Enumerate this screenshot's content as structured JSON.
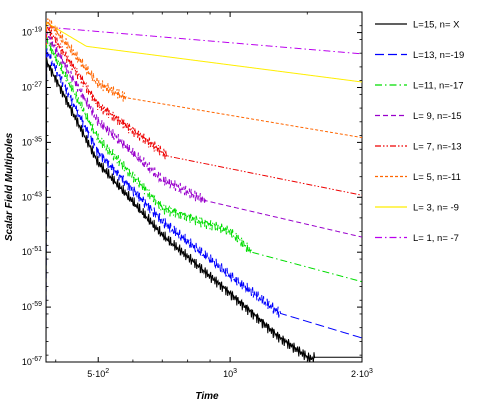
{
  "chart_data": {
    "type": "line",
    "title": "",
    "xlabel": "Time",
    "ylabel": "Scalar Field Multipoles",
    "x_scale": "log",
    "y_scale": "log",
    "xlim": [
      380,
      2000
    ],
    "ylim": [
      1e-67,
      1e-16
    ],
    "x_ticks": [
      {
        "value": 500,
        "base": "5·10",
        "exp": "2"
      },
      {
        "value": 1000,
        "base": "10",
        "exp": "3"
      },
      {
        "value": 2000,
        "base": "2·10",
        "exp": "3"
      }
    ],
    "y_ticks": [
      {
        "value_exp": -19,
        "base": "10",
        "exp": "-19"
      },
      {
        "value_exp": -27,
        "base": "10",
        "exp": "-27"
      },
      {
        "value_exp": -35,
        "base": "10",
        "exp": "-35"
      },
      {
        "value_exp": -43,
        "base": "10",
        "exp": "-43"
      },
      {
        "value_exp": -51,
        "base": "10",
        "exp": "-51"
      },
      {
        "value_exp": -59,
        "base": "10",
        "exp": "-59"
      },
      {
        "value_exp": -67,
        "base": "10",
        "exp": "-67"
      }
    ],
    "grid": false,
    "legend_position": "right",
    "series": [
      {
        "name": "L=15, n= X",
        "color": "#000000",
        "dash": "solid",
        "tail_slope": 0,
        "points": [
          [
            380,
            -23.0
          ],
          [
            500,
            -38.0
          ],
          [
            700,
            -48.5
          ],
          [
            1000,
            -57.0
          ],
          [
            1300,
            -63.5
          ],
          [
            1530,
            -66.6
          ],
          [
            1560,
            -66.3
          ],
          [
            2000,
            -66.3
          ]
        ]
      },
      {
        "name": "L=13, n=-19",
        "color": "#0000ff",
        "dash": "long-dash",
        "tail_slope": -19,
        "points": [
          [
            380,
            -21.5
          ],
          [
            500,
            -36.5
          ],
          [
            700,
            -46.5
          ],
          [
            1000,
            -54.5
          ],
          [
            1300,
            -59.9
          ],
          [
            2000,
            -63.5
          ]
        ]
      },
      {
        "name": "L=11, n=-17",
        "color": "#00dd00",
        "dash": "dash-dot",
        "tail_slope": -17,
        "points": [
          [
            380,
            -20.0
          ],
          [
            500,
            -34.5
          ],
          [
            700,
            -44.5
          ],
          [
            1000,
            -48.0
          ],
          [
            1120,
            -51.0
          ],
          [
            2000,
            -55.3
          ]
        ]
      },
      {
        "name": "L= 9, n=-15",
        "color": "#9900cc",
        "dash": "dash",
        "tail_slope": -15,
        "points": [
          [
            380,
            -19.0
          ],
          [
            500,
            -32.0
          ],
          [
            700,
            -40.5
          ],
          [
            880,
            -43.5
          ],
          [
            2000,
            -48.8
          ]
        ]
      },
      {
        "name": "L= 7, n=-13",
        "color": "#ee0000",
        "dash": "dash-dot-dot",
        "tail_slope": -13,
        "points": [
          [
            380,
            -18.0
          ],
          [
            500,
            -29.5
          ],
          [
            720,
            -37.0
          ],
          [
            2000,
            -42.7
          ]
        ]
      },
      {
        "name": "L= 5, n=-11",
        "color": "#ff6600",
        "dash": "short-dash",
        "tail_slope": -11,
        "points": [
          [
            380,
            -17.0
          ],
          [
            500,
            -26.5
          ],
          [
            580,
            -28.5
          ],
          [
            2000,
            -34.3
          ]
        ]
      },
      {
        "name": "L= 3, n= -9",
        "color": "#ffee00",
        "dash": "solid",
        "tail_slope": -9,
        "points": [
          [
            380,
            -17.5
          ],
          [
            470,
            -21.0
          ],
          [
            2000,
            -26.2
          ]
        ]
      },
      {
        "name": "L= 1, n= -7",
        "color": "#bb00ee",
        "dash": "dash-dot",
        "tail_slope": -7,
        "points": [
          [
            380,
            -18.2
          ],
          [
            2000,
            -22.1
          ]
        ]
      }
    ]
  }
}
